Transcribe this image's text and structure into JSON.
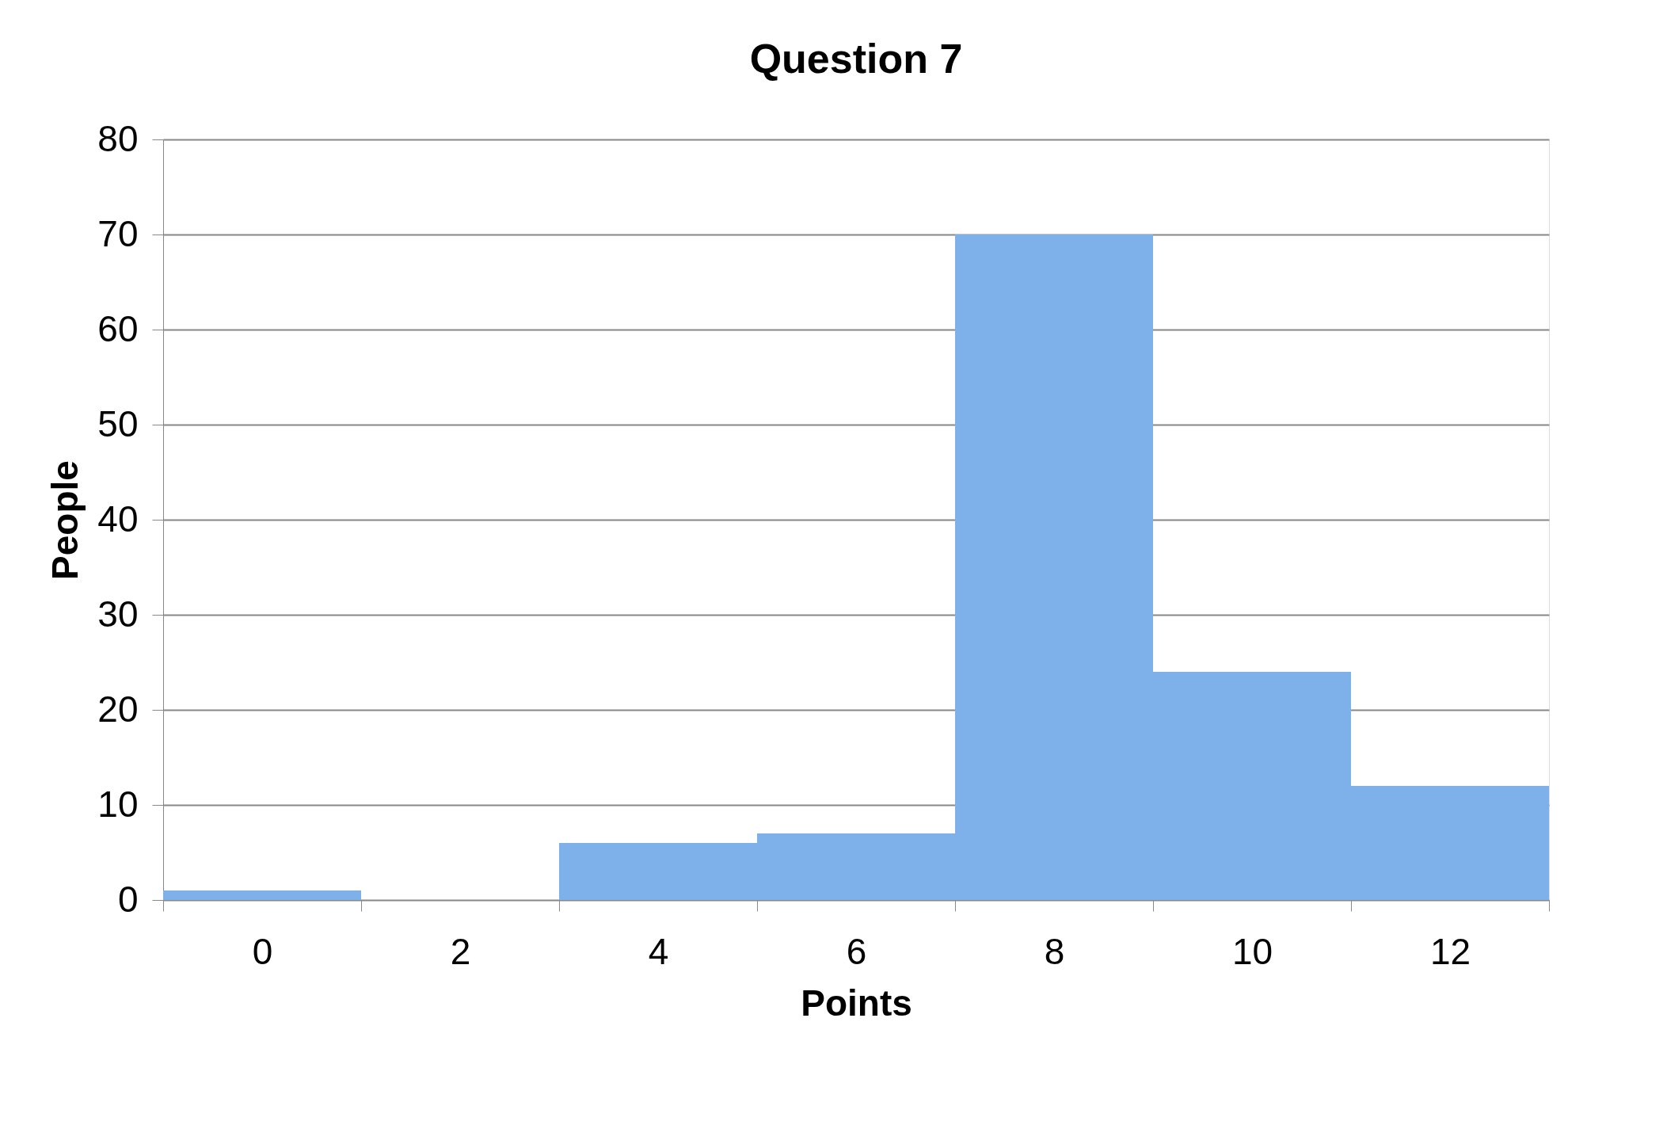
{
  "chart_data": {
    "type": "bar",
    "title": "Question 7",
    "xlabel": "Points",
    "ylabel": "People",
    "categories": [
      "0",
      "2",
      "4",
      "6",
      "8",
      "10",
      "12"
    ],
    "values": [
      1,
      0,
      6,
      7,
      70,
      24,
      12
    ],
    "color": "#7eb0ea",
    "ylim": [
      0,
      80
    ],
    "yticks": [
      0,
      10,
      20,
      30,
      40,
      50,
      60,
      70,
      80
    ],
    "grid": "y"
  }
}
